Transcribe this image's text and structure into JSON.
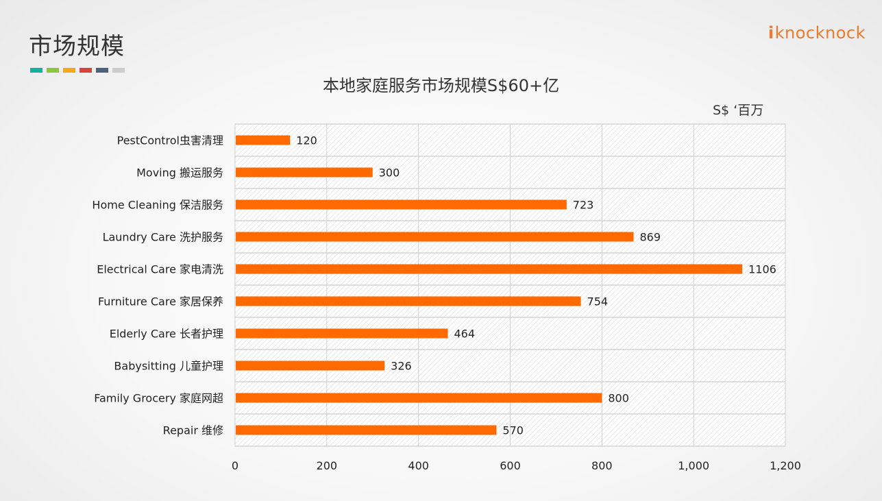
{
  "slide": {
    "title": "市场规模",
    "logo_mark": "i",
    "logo_text": "knocknock",
    "accent_colors": [
      "#1aaf9a",
      "#8cc63f",
      "#f5a81c",
      "#d9443a",
      "#4e6178",
      "#cccccc"
    ]
  },
  "chart_data": {
    "type": "bar",
    "orientation": "horizontal",
    "title": "本地家庭服务市场规模S$60+亿",
    "unit_label": "S$ ‘百万",
    "categories": [
      "PestControl虫害清理",
      "Moving 搬运服务",
      "Home Cleaning 保洁服务",
      "Laundry Care 洗护服务",
      "Electrical Care 家电清洗",
      "Furniture Care 家居保养",
      "Elderly Care 长者护理",
      "Babysitting 儿童护理",
      "Family Grocery 家庭网超",
      "Repair 维修"
    ],
    "values": [
      120,
      300,
      723,
      869,
      1106,
      754,
      464,
      326,
      800,
      570
    ],
    "data_labels": [
      "120",
      "300",
      "723",
      "869",
      "1106",
      "754",
      "464",
      "326",
      "800",
      "570"
    ],
    "xlim": [
      0,
      1200
    ],
    "ticks": [
      0,
      200,
      400,
      600,
      800,
      1000,
      1200
    ],
    "tick_labels": [
      "0",
      "200",
      "400",
      "600",
      "800",
      "1,000",
      "1,200"
    ],
    "bar_color": "#ff6a00",
    "grid": true,
    "legend": "none"
  }
}
